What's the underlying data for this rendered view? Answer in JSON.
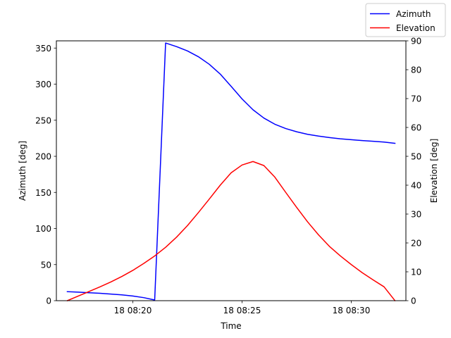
{
  "chart_data": {
    "type": "line",
    "xlabel": "Time",
    "ylabel_left": "Azimuth [deg]",
    "ylabel_right": "Elevation [deg]",
    "x_range": [
      "18 08:16:30",
      "18 08:32:30"
    ],
    "ylim_left": [
      0,
      360
    ],
    "ylim_right": [
      0,
      90
    ],
    "x_ticks": [
      {
        "t": "18 08:20:00",
        "label": "18 08:20"
      },
      {
        "t": "18 08:25:00",
        "label": "18 08:25"
      },
      {
        "t": "18 08:30:00",
        "label": "18 08:30"
      }
    ],
    "y_ticks_left": [
      0,
      50,
      100,
      150,
      200,
      250,
      300,
      350
    ],
    "y_ticks_right": [
      0,
      10,
      20,
      30,
      40,
      50,
      60,
      70,
      80,
      90
    ],
    "grid": false,
    "legend_position": "top-right",
    "series": [
      {
        "name": "Azimuth",
        "axis": "left",
        "color": "#0000ff",
        "points": [
          [
            "18 08:17:00",
            12.5
          ],
          [
            "18 08:17:30",
            11.8
          ],
          [
            "18 08:18:00",
            11.0
          ],
          [
            "18 08:18:30",
            10.2
          ],
          [
            "18 08:19:00",
            9.2
          ],
          [
            "18 08:19:30",
            8.0
          ],
          [
            "18 08:20:00",
            6.5
          ],
          [
            "18 08:20:30",
            4.2
          ],
          [
            "18 08:21:00",
            1.0
          ],
          [
            "18 08:21:30",
            357.0
          ],
          [
            "18 08:22:00",
            352.0
          ],
          [
            "18 08:22:30",
            346.0
          ],
          [
            "18 08:23:00",
            338.0
          ],
          [
            "18 08:23:30",
            327.5
          ],
          [
            "18 08:24:00",
            314.0
          ],
          [
            "18 08:24:30",
            297.0
          ],
          [
            "18 08:25:00",
            279.5
          ],
          [
            "18 08:25:30",
            264.5
          ],
          [
            "18 08:26:00",
            253.0
          ],
          [
            "18 08:26:30",
            244.5
          ],
          [
            "18 08:27:00",
            238.5
          ],
          [
            "18 08:27:30",
            234.0
          ],
          [
            "18 08:28:00",
            230.5
          ],
          [
            "18 08:28:30",
            228.0
          ],
          [
            "18 08:29:00",
            226.0
          ],
          [
            "18 08:29:30",
            224.3
          ],
          [
            "18 08:30:00",
            223.0
          ],
          [
            "18 08:30:30",
            221.8
          ],
          [
            "18 08:31:00",
            220.8
          ],
          [
            "18 08:31:30",
            219.8
          ],
          [
            "18 08:32:00",
            218.0
          ]
        ]
      },
      {
        "name": "Elevation",
        "axis": "right",
        "color": "#ff0000",
        "points": [
          [
            "18 08:17:00",
            0.0
          ],
          [
            "18 08:17:30",
            1.6
          ],
          [
            "18 08:18:00",
            3.2
          ],
          [
            "18 08:18:30",
            4.8
          ],
          [
            "18 08:19:00",
            6.5
          ],
          [
            "18 08:19:30",
            8.4
          ],
          [
            "18 08:20:00",
            10.5
          ],
          [
            "18 08:20:30",
            12.9
          ],
          [
            "18 08:21:00",
            15.5
          ],
          [
            "18 08:21:30",
            18.5
          ],
          [
            "18 08:22:00",
            22.0
          ],
          [
            "18 08:22:30",
            26.0
          ],
          [
            "18 08:23:00",
            30.5
          ],
          [
            "18 08:23:30",
            35.2
          ],
          [
            "18 08:24:00",
            40.0
          ],
          [
            "18 08:24:30",
            44.3
          ],
          [
            "18 08:25:00",
            47.0
          ],
          [
            "18 08:25:30",
            48.2
          ],
          [
            "18 08:26:00",
            46.8
          ],
          [
            "18 08:26:30",
            42.8
          ],
          [
            "18 08:27:00",
            37.5
          ],
          [
            "18 08:27:30",
            32.3
          ],
          [
            "18 08:28:00",
            27.3
          ],
          [
            "18 08:28:30",
            22.8
          ],
          [
            "18 08:29:00",
            18.8
          ],
          [
            "18 08:29:30",
            15.5
          ],
          [
            "18 08:30:00",
            12.5
          ],
          [
            "18 08:30:30",
            9.7
          ],
          [
            "18 08:31:00",
            7.2
          ],
          [
            "18 08:31:30",
            4.8
          ],
          [
            "18 08:32:00",
            0.0
          ]
        ]
      }
    ]
  }
}
